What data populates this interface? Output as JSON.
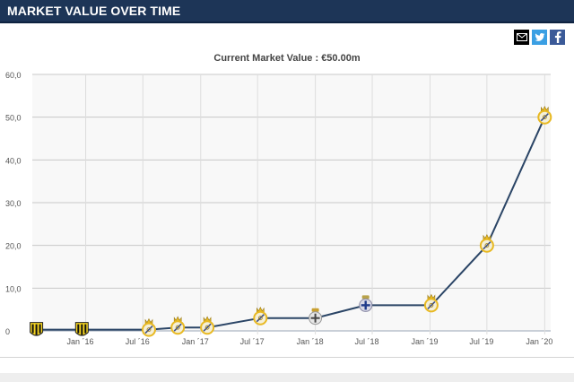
{
  "header": {
    "title": "MARKET VALUE OVER TIME"
  },
  "share": {
    "email_icon": "envelope-icon",
    "twitter_icon": "twitter-icon",
    "facebook_icon": "facebook-icon"
  },
  "colors": {
    "header_bg": "#1d3557",
    "line": "#2b4566",
    "grid": "#c8c8c8",
    "plot_bg": "#f8f8f8",
    "badge_real_madrid": "#e8b923",
    "badge_penarol": "#f3d21f",
    "badge_deportivo": "#d9d9e6"
  },
  "chart_data": {
    "type": "line",
    "title": "Current Market Value : €50.00m",
    "xlabel": "",
    "ylabel": "",
    "ylim": [
      0,
      60
    ],
    "yticks": [
      "0",
      "10,0",
      "20,0",
      "30,0",
      "40,0",
      "50,0",
      "60,0"
    ],
    "ytick_values": [
      0,
      10,
      20,
      30,
      40,
      50,
      60
    ],
    "xticks": [
      "Jan ´16",
      "Jul ´16",
      "Jan ´17",
      "Jul ´17",
      "Jan ´18",
      "Jul ´18",
      "Jan ´19",
      "Jul ´19",
      "Jan ´20"
    ],
    "xtick_dates": [
      "2016-01-01",
      "2016-07-01",
      "2017-01-01",
      "2017-07-01",
      "2018-01-01",
      "2018-07-01",
      "2019-01-01",
      "2019-07-01",
      "2020-01-01"
    ],
    "xlim": [
      "2015-07-15",
      "2020-01-20"
    ],
    "grid": true,
    "legend": "none",
    "series": [
      {
        "points": [
          {
            "date": "2015-07-28",
            "value": 0.3,
            "club": "penarol"
          },
          {
            "date": "2015-12-20",
            "value": 0.3,
            "club": "penarol"
          },
          {
            "date": "2016-07-20",
            "value": 0.3,
            "club": "real-madrid"
          },
          {
            "date": "2016-10-20",
            "value": 0.8,
            "club": "real-madrid"
          },
          {
            "date": "2017-01-22",
            "value": 0.8,
            "club": "real-madrid"
          },
          {
            "date": "2017-07-10",
            "value": 3.0,
            "club": "real-madrid"
          },
          {
            "date": "2018-01-01",
            "value": 3.0,
            "club": "real-madrid-loan"
          },
          {
            "date": "2018-06-10",
            "value": 6.0,
            "club": "deportivo"
          },
          {
            "date": "2019-01-05",
            "value": 6.0,
            "club": "real-madrid"
          },
          {
            "date": "2019-07-01",
            "value": 20.0,
            "club": "real-madrid"
          },
          {
            "date": "2020-01-01",
            "value": 50.0,
            "club": "real-madrid"
          }
        ]
      }
    ]
  }
}
